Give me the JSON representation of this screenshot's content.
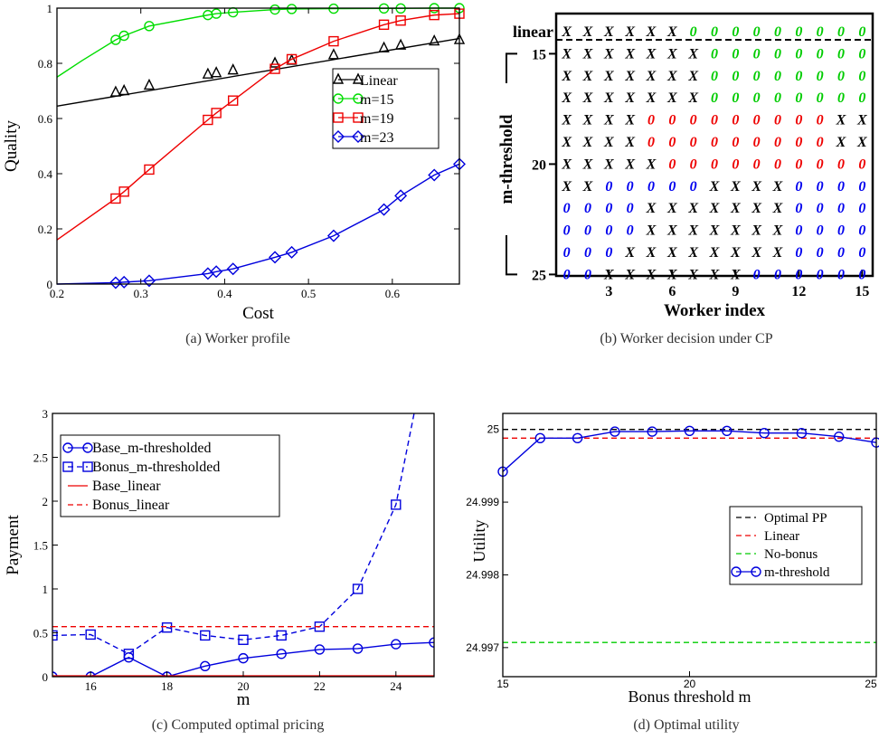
{
  "captions": {
    "a": "(a) Worker profile",
    "b": "(b) Worker decision under CP",
    "c": "(c) Computed optimal pricing",
    "d": "(d) Optimal utility"
  },
  "chart_data": [
    {
      "id": "a",
      "type": "line",
      "xlabel": "Cost",
      "ylabel": "Quality",
      "xlim": [
        0.2,
        0.68
      ],
      "ylim": [
        0,
        1
      ],
      "xticks": [
        "0.2",
        "0.3",
        "0.4",
        "0.5",
        "0.6"
      ],
      "yticks": [
        "0",
        "0.2",
        "0.4",
        "0.6",
        "0.8",
        "1"
      ],
      "legend_position": "right-middle",
      "series": [
        {
          "name": "Linear",
          "color": "#000000",
          "marker": "triangle",
          "line_x": [
            0.2,
            0.68
          ],
          "line_y": [
            0.645,
            0.89
          ],
          "points_x": [
            0.27,
            0.28,
            0.31,
            0.38,
            0.39,
            0.41,
            0.46,
            0.48,
            0.53,
            0.59,
            0.61,
            0.65,
            0.68
          ],
          "points_y": [
            0.695,
            0.7,
            0.72,
            0.76,
            0.765,
            0.775,
            0.8,
            0.81,
            0.83,
            0.855,
            0.865,
            0.88,
            0.885
          ]
        },
        {
          "name": "m=15",
          "color": "#00dd00",
          "marker": "circle",
          "line_x": [
            0.2,
            0.23,
            0.27,
            0.28,
            0.31,
            0.38,
            0.39,
            0.41,
            0.46,
            0.48,
            0.53,
            0.59,
            0.61,
            0.65,
            0.68
          ],
          "line_y": [
            0.75,
            0.81,
            0.885,
            0.9,
            0.935,
            0.975,
            0.98,
            0.985,
            0.995,
            0.997,
            0.998,
            0.999,
            0.999,
            1.0,
            1.0
          ],
          "points_x": [
            0.27,
            0.28,
            0.31,
            0.38,
            0.39,
            0.41,
            0.46,
            0.48,
            0.53,
            0.59,
            0.61,
            0.65,
            0.68
          ],
          "points_y": [
            0.885,
            0.9,
            0.935,
            0.975,
            0.98,
            0.985,
            0.995,
            0.997,
            0.998,
            0.999,
            0.999,
            1.0,
            1.0
          ]
        },
        {
          "name": "m=19",
          "color": "#ee0000",
          "marker": "square",
          "line_x": [
            0.2,
            0.27,
            0.28,
            0.31,
            0.38,
            0.39,
            0.41,
            0.46,
            0.48,
            0.53,
            0.59,
            0.61,
            0.65,
            0.68
          ],
          "line_y": [
            0.16,
            0.31,
            0.335,
            0.415,
            0.595,
            0.62,
            0.665,
            0.78,
            0.815,
            0.88,
            0.94,
            0.955,
            0.975,
            0.98
          ],
          "points_x": [
            0.27,
            0.28,
            0.31,
            0.38,
            0.39,
            0.41,
            0.46,
            0.48,
            0.53,
            0.59,
            0.61,
            0.65,
            0.68
          ],
          "points_y": [
            0.31,
            0.335,
            0.415,
            0.595,
            0.62,
            0.665,
            0.78,
            0.815,
            0.88,
            0.94,
            0.955,
            0.975,
            0.98
          ]
        },
        {
          "name": "m=23",
          "color": "#0000dd",
          "marker": "diamond",
          "line_x": [
            0.2,
            0.27,
            0.28,
            0.31,
            0.38,
            0.39,
            0.41,
            0.46,
            0.48,
            0.53,
            0.59,
            0.61,
            0.65,
            0.68
          ],
          "line_y": [
            0.0,
            0.005,
            0.007,
            0.012,
            0.038,
            0.045,
            0.055,
            0.097,
            0.115,
            0.175,
            0.27,
            0.32,
            0.395,
            0.435
          ],
          "points_x": [
            0.27,
            0.28,
            0.31,
            0.38,
            0.39,
            0.41,
            0.46,
            0.48,
            0.53,
            0.59,
            0.61,
            0.65,
            0.68
          ],
          "points_y": [
            0.005,
            0.007,
            0.012,
            0.038,
            0.045,
            0.055,
            0.097,
            0.115,
            0.175,
            0.27,
            0.32,
            0.395,
            0.435
          ]
        }
      ]
    },
    {
      "id": "b",
      "type": "table",
      "xlabel": "Worker index",
      "ylabel": "m-threshold",
      "row_top_label": "linear",
      "row_tick_labels": [
        {
          "row": 1,
          "label": "15"
        },
        {
          "row": 6,
          "label": "20"
        },
        {
          "row": 11,
          "label": "25"
        }
      ],
      "xticks": [
        3,
        6,
        9,
        12,
        15
      ],
      "color_map": {
        "X": "#000000",
        "0G": "#00cc00",
        "0R": "#ee0000",
        "0B": "#0000ee"
      },
      "rows": [
        "X X X X X X 0G 0G 0G 0G 0G 0G 0G 0G 0G",
        "X X X X X X X 0G 0G 0G 0G 0G 0G 0G 0G",
        "X X X X X X X 0G 0G 0G 0G 0G 0G 0G 0G",
        "X X X X X X X 0G 0G 0G 0G 0G 0G 0G 0G",
        "X X X X 0R 0R 0R 0R 0R 0R 0R 0R 0R X X",
        "X X X X 0R 0R 0R 0R 0R 0R 0R 0R 0R X X",
        "X X X X X 0R 0R 0R 0R 0R 0R 0R 0R 0R 0R",
        "X X 0B 0B 0B 0B 0B X X X X 0B 0B 0B 0B",
        "0B 0B 0B 0B X X X X X X X 0B 0B 0B 0B",
        "0B 0B 0B 0B X X X X X X X 0B 0B 0B 0B",
        "0B 0B 0B X X X X X X X X 0B 0B 0B 0B",
        "0B 0B X X X X X X X 0B 0B 0B 0B 0B 0B"
      ]
    },
    {
      "id": "c",
      "type": "line",
      "xlabel": "m",
      "ylabel": "Payment",
      "xlim": [
        15,
        25
      ],
      "ylim": [
        0,
        3
      ],
      "xticks": [
        "16",
        "18",
        "20",
        "22",
        "24"
      ],
      "yticks": [
        "0",
        "0.5",
        "1",
        "1.5",
        "2",
        "2.5",
        "3"
      ],
      "legend_position": "top-left",
      "series": [
        {
          "name": "Base_m-thresholded",
          "color": "#0000dd",
          "marker": "circle",
          "dash": "",
          "x": [
            15,
            16,
            17,
            18,
            19,
            20,
            21,
            22,
            23,
            24,
            25
          ],
          "y": [
            0.0,
            0.0,
            0.22,
            0.0,
            0.12,
            0.21,
            0.26,
            0.31,
            0.32,
            0.37,
            0.39
          ]
        },
        {
          "name": "Bonus_m-thresholded",
          "color": "#0000dd",
          "marker": "square",
          "dash": "6,4",
          "x": [
            15,
            16,
            17,
            18,
            19,
            20,
            21,
            22,
            23,
            24,
            24.5
          ],
          "y": [
            0.47,
            0.48,
            0.26,
            0.56,
            0.47,
            0.42,
            0.47,
            0.57,
            1.0,
            1.96,
            3.05
          ]
        },
        {
          "name": "Base_linear",
          "color": "#ee0000",
          "marker": "",
          "dash": "",
          "x": [
            15,
            25
          ],
          "y": [
            0.01,
            0.01
          ]
        },
        {
          "name": "Bonus_linear",
          "color": "#ee0000",
          "marker": "",
          "dash": "6,4",
          "x": [
            15,
            25
          ],
          "y": [
            0.57,
            0.57
          ]
        }
      ]
    },
    {
      "id": "d",
      "type": "line",
      "xlabel": "Bonus threshold m",
      "ylabel": "Utility",
      "xlim": [
        15,
        25
      ],
      "ylim": [
        24.9966,
        25.00022
      ],
      "xticks": [
        "15",
        "20",
        "25"
      ],
      "yticks": [
        "24.997",
        "24.998",
        "24.999",
        "25"
      ],
      "legend_position": "right-middle",
      "series": [
        {
          "name": "Optimal PP",
          "color": "#000000",
          "marker": "",
          "dash": "6,4",
          "x": [
            15,
            25
          ],
          "y": [
            25.0,
            25.0
          ]
        },
        {
          "name": "Linear",
          "color": "#ee0000",
          "marker": "",
          "dash": "6,4",
          "x": [
            15,
            25
          ],
          "y": [
            24.99988,
            24.99988
          ]
        },
        {
          "name": "No-bonus",
          "color": "#00cc00",
          "marker": "",
          "dash": "6,4",
          "x": [
            15,
            25
          ],
          "y": [
            24.99707,
            24.99707
          ]
        },
        {
          "name": "m-threshold",
          "color": "#0000dd",
          "marker": "circle",
          "dash": "",
          "x": [
            15,
            16,
            17,
            18,
            19,
            20,
            21,
            22,
            23,
            24,
            25
          ],
          "y": [
            24.99942,
            24.99988,
            24.99988,
            24.99997,
            24.99997,
            24.99998,
            24.99998,
            24.99995,
            24.99995,
            24.9999,
            24.99982
          ]
        }
      ]
    }
  ]
}
